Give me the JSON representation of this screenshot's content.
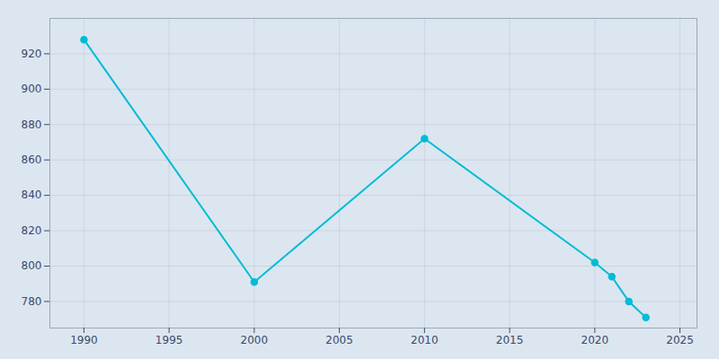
{
  "chart_data": {
    "type": "line",
    "x": [
      1990,
      2000,
      2010,
      2020,
      2021,
      2022,
      2023
    ],
    "values": [
      928,
      791,
      872,
      802,
      794,
      780,
      771
    ],
    "color": "#00BCD4",
    "marker": "o",
    "xlim": [
      1988,
      2026
    ],
    "ylim": [
      765,
      940
    ],
    "xticks": [
      1990,
      1995,
      2000,
      2005,
      2010,
      2015,
      2020,
      2025
    ],
    "yticks": [
      780,
      800,
      820,
      840,
      860,
      880,
      900,
      920
    ],
    "grid": true
  }
}
